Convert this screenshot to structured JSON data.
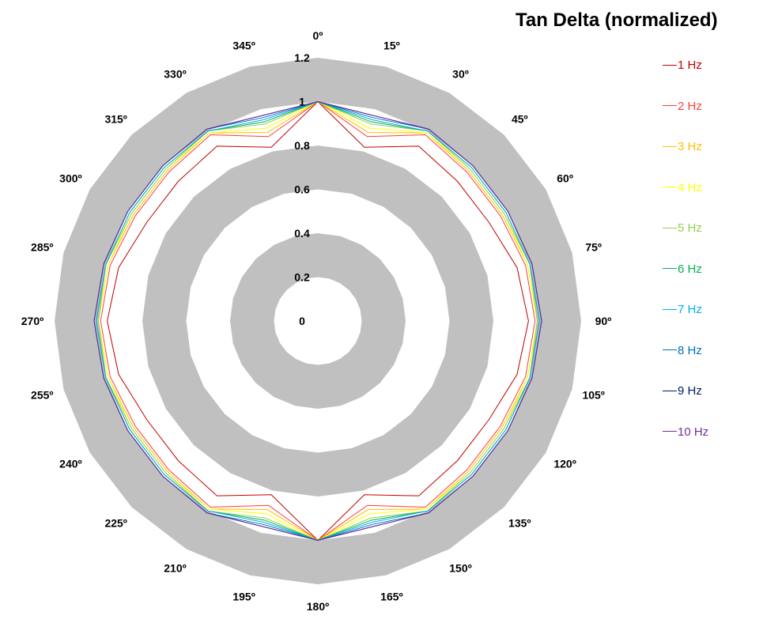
{
  "chart_data": {
    "type": "radar",
    "title": "Tan Delta (normalized)",
    "categories": [
      "0º",
      "15º",
      "30º",
      "45º",
      "60º",
      "75º",
      "90º",
      "105º",
      "120º",
      "135º",
      "150º",
      "165º",
      "180º",
      "195º",
      "210º",
      "225º",
      "240º",
      "255º",
      "270º",
      "285º",
      "300º",
      "315º",
      "330º",
      "345º"
    ],
    "radial_ticks": [
      "0",
      "0.2",
      "0.4",
      "0.6",
      "0.8",
      "1",
      "1.2"
    ],
    "rlim": [
      0,
      1.2
    ],
    "band_color": "#c0c0c0",
    "legend_position": "right",
    "series": [
      {
        "name": "1 Hz",
        "color": "#c00000",
        "values": [
          1.0,
          0.82,
          0.92,
          0.9,
          0.9,
          0.94,
          0.96,
          0.94,
          0.9,
          0.9,
          0.92,
          0.82,
          1.0,
          0.82,
          0.92,
          0.9,
          0.9,
          0.94,
          0.96,
          0.94,
          0.9,
          0.9,
          0.92,
          0.82
        ]
      },
      {
        "name": "2 Hz",
        "color": "#ff3b3b",
        "values": [
          1.0,
          0.87,
          0.98,
          0.96,
          0.96,
          0.98,
          0.99,
          0.98,
          0.96,
          0.96,
          0.98,
          0.87,
          1.0,
          0.87,
          0.98,
          0.96,
          0.96,
          0.98,
          0.99,
          0.98,
          0.96,
          0.96,
          0.98,
          0.87
        ]
      },
      {
        "name": "3 Hz",
        "color": "#ffc000",
        "values": [
          1.0,
          0.89,
          0.99,
          0.97,
          0.97,
          0.99,
          1.0,
          0.99,
          0.97,
          0.97,
          0.99,
          0.89,
          1.0,
          0.89,
          0.99,
          0.97,
          0.97,
          0.99,
          1.0,
          0.99,
          0.97,
          0.97,
          0.99,
          0.89
        ]
      },
      {
        "name": "4 Hz",
        "color": "#ffff00",
        "values": [
          1.0,
          0.91,
          0.99,
          0.98,
          0.98,
          0.99,
          1.0,
          0.99,
          0.98,
          0.98,
          0.99,
          0.91,
          1.0,
          0.91,
          0.99,
          0.98,
          0.98,
          0.99,
          1.0,
          0.99,
          0.98,
          0.98,
          0.99,
          0.91
        ]
      },
      {
        "name": "5 Hz",
        "color": "#92d050",
        "values": [
          1.0,
          0.93,
          1.0,
          0.98,
          0.98,
          1.0,
          1.0,
          1.0,
          0.98,
          0.98,
          1.0,
          0.93,
          1.0,
          0.93,
          1.0,
          0.98,
          0.98,
          1.0,
          1.0,
          1.0,
          0.98,
          0.98,
          1.0,
          0.93
        ]
      },
      {
        "name": "6 Hz",
        "color": "#00b050",
        "values": [
          1.0,
          0.94,
          1.0,
          0.99,
          0.99,
          1.0,
          1.01,
          1.0,
          0.99,
          0.99,
          1.0,
          0.94,
          1.0,
          0.94,
          1.0,
          0.99,
          0.99,
          1.0,
          1.01,
          1.0,
          0.99,
          0.99,
          1.0,
          0.94
        ]
      },
      {
        "name": "7 Hz",
        "color": "#00b0f0",
        "values": [
          1.0,
          0.95,
          1.0,
          0.99,
          0.99,
          1.0,
          1.01,
          1.0,
          0.99,
          0.99,
          1.0,
          0.95,
          1.0,
          0.95,
          1.0,
          0.99,
          0.99,
          1.0,
          1.01,
          1.0,
          0.99,
          0.99,
          1.0,
          0.95
        ]
      },
      {
        "name": "8 Hz",
        "color": "#0070c0",
        "values": [
          1.0,
          0.96,
          1.01,
          1.0,
          1.0,
          1.01,
          1.02,
          1.01,
          1.0,
          1.0,
          1.01,
          0.96,
          1.0,
          0.96,
          1.01,
          1.0,
          1.0,
          1.01,
          1.02,
          1.01,
          1.0,
          1.0,
          1.01,
          0.96
        ]
      },
      {
        "name": "9 Hz",
        "color": "#002060",
        "values": [
          1.0,
          0.97,
          1.01,
          1.0,
          1.0,
          1.01,
          1.02,
          1.01,
          1.0,
          1.0,
          1.01,
          0.97,
          1.0,
          0.97,
          1.01,
          1.0,
          1.0,
          1.01,
          1.02,
          1.01,
          1.0,
          1.0,
          1.01,
          0.97
        ]
      },
      {
        "name": "10 Hz",
        "color": "#7030a0",
        "values": [
          1.0,
          0.97,
          1.01,
          1.0,
          1.0,
          1.01,
          1.02,
          1.01,
          1.0,
          1.0,
          1.01,
          0.97,
          1.0,
          0.97,
          1.01,
          1.0,
          1.0,
          1.01,
          1.02,
          1.01,
          1.0,
          1.0,
          1.01,
          0.97
        ]
      }
    ]
  }
}
